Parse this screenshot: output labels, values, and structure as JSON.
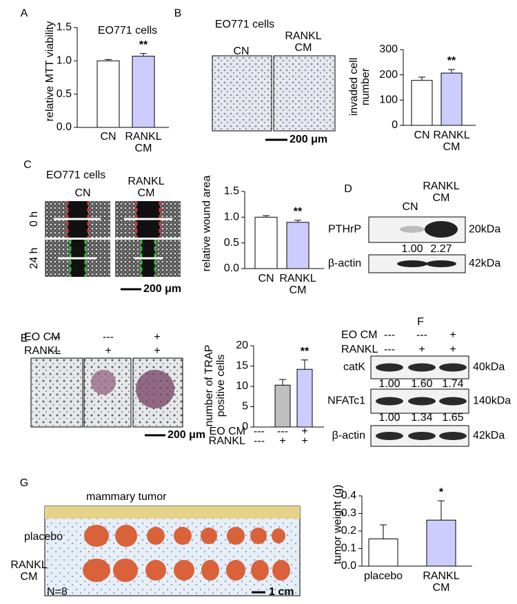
{
  "panel_labels": [
    "A",
    "B",
    "C",
    "D",
    "E",
    "F",
    "G"
  ],
  "chart_data": [
    {
      "type": "bar",
      "title": "EO771 cells",
      "ylabel": "relative MTT viability",
      "categories": [
        "CN",
        "RANKL CM"
      ],
      "values": [
        1.0,
        1.07
      ],
      "errors": [
        0.02,
        0.04
      ],
      "colors": [
        "#ffffff",
        "#ccccff"
      ],
      "annotations": [
        null,
        "**"
      ],
      "ylim": [
        0,
        1.5
      ],
      "yticks": [
        {
          "value": 0,
          "label": "0.0"
        },
        {
          "value": 0.5,
          "label": "0.5"
        },
        {
          "value": 1,
          "label": "1.0"
        },
        {
          "value": 1.5,
          "label": "1.5"
        }
      ]
    },
    {
      "type": "bar",
      "ylabel": "invaded cell number",
      "categories": [
        "CN",
        "RANKL CM"
      ],
      "values": [
        178,
        207
      ],
      "errors": [
        13,
        14
      ],
      "colors": [
        "#ffffff",
        "#ccccff"
      ],
      "annotations": [
        null,
        "**"
      ],
      "ylim": [
        0,
        300
      ],
      "yticks": [
        0,
        100,
        200,
        300
      ]
    },
    {
      "type": "bar",
      "ylabel": "relative wound area",
      "categories": [
        "CN",
        "RANKL CM"
      ],
      "values": [
        1.0,
        0.9
      ],
      "errors": [
        0.03,
        0.04
      ],
      "colors": [
        "#ffffff",
        "#ccccff"
      ],
      "annotations": [
        null,
        "**"
      ],
      "ylim": [
        0,
        1.5
      ],
      "yticks": [
        {
          "value": 0,
          "label": "0.0"
        },
        {
          "value": 0.5,
          "label": "0.5"
        },
        {
          "value": 1,
          "label": "1.0"
        },
        {
          "value": 1.5,
          "label": "1.5"
        }
      ]
    },
    {
      "type": "bar",
      "ylabel": "number of TRAP positive cells",
      "condition_rows": [
        {
          "name": "EO CM",
          "values": [
            "---",
            "---",
            "+"
          ]
        },
        {
          "name": "RANKL",
          "values": [
            "---",
            "+",
            "+"
          ]
        }
      ],
      "values": [
        null,
        10.3,
        14.2
      ],
      "errors": [
        null,
        1.4,
        2.3
      ],
      "colors": [
        "#ffffff",
        "#bfbfbf",
        "#ccccff"
      ],
      "annotations": [
        null,
        null,
        "**"
      ],
      "ylim": [
        0,
        20
      ],
      "yticks": [
        0,
        5,
        10,
        15,
        20
      ]
    },
    {
      "type": "bar",
      "ylabel": "tumor weight (g)",
      "categories": [
        "placebo",
        "RANKL CM"
      ],
      "values": [
        0.155,
        0.262
      ],
      "errors": [
        0.08,
        0.11
      ],
      "colors": [
        "#ffffff",
        "#ccccff"
      ],
      "annotations": [
        null,
        "*"
      ],
      "ylim": [
        0,
        0.4
      ],
      "yticks": [
        {
          "value": 0,
          "label": "0.0"
        },
        0.1,
        0.2,
        0.3,
        0.4
      ]
    }
  ],
  "panel_B": {
    "title": "EO771 cells",
    "image_labels": [
      "CN",
      "RANKL CM"
    ],
    "scale_bar": "200 μm"
  },
  "panel_C": {
    "title": "EO771 cells",
    "image_labels": [
      "CN",
      "RANKL CM"
    ],
    "row_labels": [
      "0 h",
      "24 h"
    ],
    "scale_bar": "200 μm"
  },
  "panel_D": {
    "lanes": [
      "CN",
      "RANKL CM"
    ],
    "blots": [
      {
        "name": "PTHrP",
        "size": "20kDa",
        "quant": [
          "1.00",
          "2.27"
        ]
      },
      {
        "name": "β-actin",
        "size": "42kDa"
      }
    ]
  },
  "panel_E": {
    "conditions": [
      {
        "name": "EO CM",
        "values": [
          "---",
          "---",
          "+"
        ]
      },
      {
        "name": "RANKL",
        "values": [
          "---",
          "+",
          "+"
        ]
      }
    ],
    "scale_bar": "200 μm"
  },
  "panel_F": {
    "conditions": [
      {
        "name": "EO CM",
        "values": [
          "---",
          "---",
          "+"
        ]
      },
      {
        "name": "RANKL",
        "values": [
          "---",
          "+",
          "+"
        ]
      }
    ],
    "blots": [
      {
        "name": "catK",
        "size": "40kDa",
        "quant": [
          "1.00",
          "1.60",
          "1.74"
        ]
      },
      {
        "name": "NFATc1",
        "size": "140kDa",
        "quant": [
          "1.00",
          "1.34",
          "1.65"
        ]
      },
      {
        "name": "β-actin",
        "size": "42kDa"
      }
    ]
  },
  "panel_G": {
    "title": "mammary tumor",
    "row_labels": [
      "placebo",
      "RANKL CM"
    ],
    "note": "N=8",
    "scale_bar": "1 cm"
  }
}
